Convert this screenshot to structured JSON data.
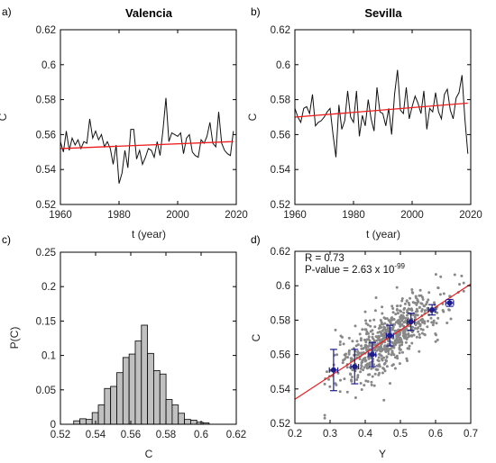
{
  "chart_data": [
    {
      "panel": "a)",
      "type": "line",
      "title": "Valencia",
      "xlabel": "t (year)",
      "ylabel": "C",
      "xlim": [
        1960,
        2020
      ],
      "ylim": [
        0.52,
        0.62
      ],
      "xticks": [
        "1960",
        "1980",
        "2000",
        "2020"
      ],
      "yticks": [
        "0.52",
        "0.54",
        "0.56",
        "0.58",
        "0.6",
        "0.62"
      ],
      "grid": false,
      "x": [
        1960,
        1961,
        1962,
        1963,
        1964,
        1965,
        1966,
        1967,
        1968,
        1969,
        1970,
        1971,
        1972,
        1973,
        1974,
        1975,
        1976,
        1977,
        1978,
        1979,
        1980,
        1981,
        1982,
        1983,
        1984,
        1985,
        1986,
        1987,
        1988,
        1989,
        1990,
        1991,
        1992,
        1993,
        1994,
        1995,
        1996,
        1997,
        1998,
        1999,
        2000,
        2001,
        2002,
        2003,
        2004,
        2005,
        2006,
        2007,
        2008,
        2009,
        2010,
        2011,
        2012,
        2013,
        2014,
        2015,
        2016,
        2017,
        2018,
        2019
      ],
      "series": [
        {
          "values": [
            0.556,
            0.55,
            0.562,
            0.551,
            0.558,
            0.554,
            0.557,
            0.552,
            0.556,
            0.555,
            0.569,
            0.558,
            0.562,
            0.557,
            0.56,
            0.553,
            0.556,
            0.552,
            0.543,
            0.554,
            0.532,
            0.538,
            0.551,
            0.541,
            0.563,
            0.563,
            0.546,
            0.551,
            0.543,
            0.547,
            0.552,
            0.551,
            0.547,
            0.556,
            0.548,
            0.563,
            0.581,
            0.556,
            0.561,
            0.56,
            0.559,
            0.561,
            0.549,
            0.558,
            0.56,
            0.55,
            0.548,
            0.547,
            0.557,
            0.555,
            0.559,
            0.567,
            0.555,
            0.553,
            0.573,
            0.555,
            0.551,
            0.549,
            0.548,
            0.562
          ],
          "color": "#111111"
        },
        {
          "values": [
            0.552,
            0.556
          ],
          "x": [
            1960,
            2019
          ],
          "color": "#ee1c1c",
          "role": "trend"
        }
      ]
    },
    {
      "panel": "b)",
      "type": "line",
      "title": "Sevilla",
      "xlabel": "t (year)",
      "ylabel": "C",
      "xlim": [
        1960,
        2020
      ],
      "ylim": [
        0.52,
        0.62
      ],
      "xticks": [
        "1960",
        "1980",
        "2000",
        "2020"
      ],
      "yticks": [
        "0.52",
        "0.54",
        "0.56",
        "0.58",
        "0.6",
        "0.62"
      ],
      "grid": false,
      "x": [
        1960,
        1961,
        1962,
        1963,
        1964,
        1965,
        1966,
        1967,
        1968,
        1969,
        1970,
        1971,
        1972,
        1973,
        1974,
        1975,
        1976,
        1977,
        1978,
        1979,
        1980,
        1981,
        1982,
        1983,
        1984,
        1985,
        1986,
        1987,
        1988,
        1989,
        1990,
        1991,
        1992,
        1993,
        1994,
        1995,
        1996,
        1997,
        1998,
        1999,
        2000,
        2001,
        2002,
        2003,
        2004,
        2005,
        2006,
        2007,
        2008,
        2009,
        2010,
        2011,
        2012,
        2013,
        2014,
        2015,
        2016,
        2017,
        2018,
        2019
      ],
      "series": [
        {
          "values": [
            0.575,
            0.57,
            0.567,
            0.575,
            0.576,
            0.572,
            0.583,
            0.565,
            0.567,
            0.568,
            0.57,
            0.573,
            0.575,
            0.56,
            0.547,
            0.577,
            0.563,
            0.568,
            0.585,
            0.57,
            0.567,
            0.585,
            0.559,
            0.571,
            0.565,
            0.58,
            0.569,
            0.562,
            0.587,
            0.573,
            0.572,
            0.565,
            0.575,
            0.56,
            0.583,
            0.597,
            0.574,
            0.572,
            0.587,
            0.569,
            0.576,
            0.582,
            0.578,
            0.572,
            0.585,
            0.563,
            0.575,
            0.573,
            0.584,
            0.573,
            0.569,
            0.583,
            0.586,
            0.574,
            0.569,
            0.581,
            0.584,
            0.594,
            0.569,
            0.549
          ],
          "color": "#111111"
        },
        {
          "values": [
            0.57,
            0.578
          ],
          "x": [
            1960,
            2019
          ],
          "color": "#ee1c1c",
          "role": "trend"
        }
      ]
    },
    {
      "panel": "c)",
      "type": "bar",
      "title": "",
      "xlabel": "C",
      "ylabel": "P(C)",
      "xlim": [
        0.52,
        0.62
      ],
      "ylim": [
        0,
        0.25
      ],
      "xticks": [
        "0.52",
        "0.54",
        "0.56",
        "0.58",
        "0.6",
        "0.62"
      ],
      "yticks": [
        "0",
        "0.05",
        "0.1",
        "0.15",
        "0.2",
        "0.25"
      ],
      "bin_width": 0.0035,
      "bin_centers": [
        0.5293,
        0.5328,
        0.5363,
        0.5398,
        0.5433,
        0.5468,
        0.5503,
        0.5538,
        0.5573,
        0.5608,
        0.5643,
        0.5678,
        0.5713,
        0.5748,
        0.5783,
        0.5818,
        0.5853,
        0.5888,
        0.5923,
        0.5958,
        0.5993,
        0.6028
      ],
      "values": [
        0.005,
        0.008,
        0.007,
        0.017,
        0.028,
        0.052,
        0.055,
        0.075,
        0.097,
        0.102,
        0.121,
        0.144,
        0.103,
        0.078,
        0.073,
        0.036,
        0.028,
        0.016,
        0.007,
        0.006,
        0.003,
        0.002
      ],
      "color": "#c0c0c0"
    },
    {
      "panel": "d)",
      "type": "scatter",
      "title": "",
      "xlabel": "Y",
      "ylabel": "C",
      "xlim": [
        0.2,
        0.7
      ],
      "ylim": [
        0.52,
        0.62
      ],
      "xticks": [
        "0.2",
        "0.3",
        "0.4",
        "0.5",
        "0.6",
        "0.7"
      ],
      "yticks": [
        "0.52",
        "0.54",
        "0.56",
        "0.58",
        "0.6",
        "0.62"
      ],
      "annotation_r": "R = 0.73",
      "annotation_p": "P-value = 2.63 x 10",
      "annotation_p_exp": "-99",
      "scatter_color": "#888888",
      "fit_line": {
        "x": [
          0.2,
          0.7
        ],
        "y": [
          0.534,
          0.601
        ],
        "color": "#ee1c1c"
      },
      "binned_means": {
        "x": [
          0.31,
          0.37,
          0.42,
          0.47,
          0.53,
          0.59,
          0.64
        ],
        "y": [
          0.551,
          0.553,
          0.56,
          0.571,
          0.579,
          0.586,
          0.59
        ],
        "yerr": [
          0.012,
          0.01,
          0.007,
          0.006,
          0.005,
          0.003,
          0.002
        ],
        "xerr": [
          0.012,
          0.011,
          0.01,
          0.01,
          0.01,
          0.01,
          0.011
        ],
        "color": "#1c1c8c"
      }
    }
  ]
}
